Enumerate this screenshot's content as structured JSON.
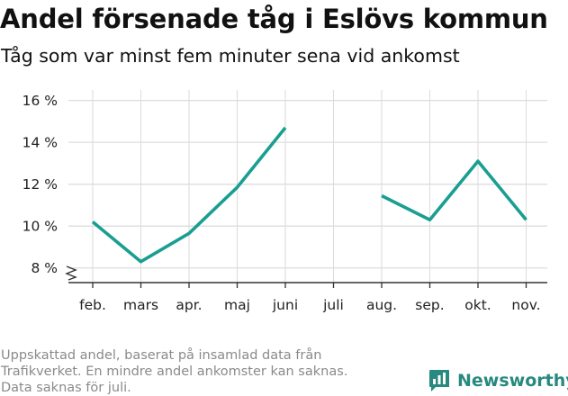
{
  "title": "Andel försenade tåg i Eslövs kommun",
  "subtitle": "Tåg som var minst fem minuter sena vid ankomst",
  "footer": {
    "line1": "Uppskattad andel, baserat på insamlad data från",
    "line2": "Trafikverket. En mindre andel ankomster kan saknas.",
    "line3": "Data saknas för juli."
  },
  "brand": {
    "name": "Newsworthy",
    "icon": "newsworthy-logo-icon"
  },
  "colors": {
    "line": "#1a9e92",
    "grid": "#dddddd",
    "axis": "#333333",
    "brand": "#27897f"
  },
  "chart_data": {
    "type": "line",
    "categories": [
      "feb.",
      "mars",
      "apr.",
      "maj",
      "juni",
      "juli",
      "aug.",
      "sep.",
      "okt.",
      "nov."
    ],
    "series": [
      {
        "values": [
          10.2,
          8.3,
          9.65,
          11.85,
          14.7,
          null,
          11.45,
          10.3,
          13.1,
          10.3
        ]
      }
    ],
    "y_ticks": [
      8,
      10,
      12,
      14,
      16
    ],
    "y_tick_labels": [
      "8 %",
      "10 %",
      "12 %",
      "14 %",
      "16 %"
    ],
    "ylim": [
      7.3,
      16.5
    ],
    "y_axis_break": true,
    "grid": true,
    "xlabel": "",
    "ylabel": ""
  }
}
